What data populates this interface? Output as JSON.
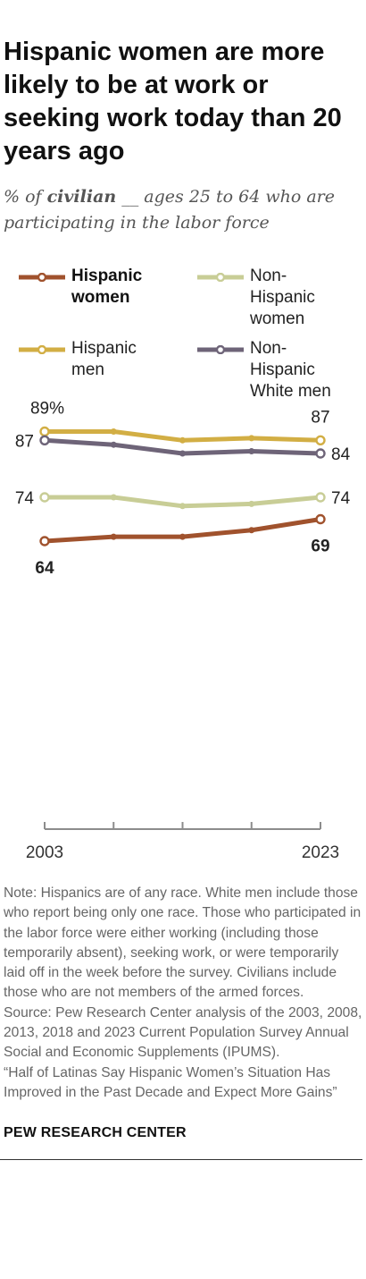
{
  "title": "Hispanic women are more likely to be at work or seeking work today than 20 years ago",
  "subtitle": {
    "pre": "% of ",
    "emph": "civilian",
    "post": " __ ages 25 to 64 who are participating in the labor force"
  },
  "legend": [
    {
      "label": "Hispanic women",
      "color": "#a0522d",
      "bold": true
    },
    {
      "label": "Non-Hispanic women",
      "color": "#c8cd96",
      "bold": false
    },
    {
      "label": "Hispanic men",
      "color": "#d2ae44",
      "bold": false
    },
    {
      "label": "Non-Hispanic White men",
      "color": "#6e6478",
      "bold": false
    }
  ],
  "chart_data": {
    "type": "line",
    "x": [
      2003,
      2008,
      2013,
      2018,
      2023
    ],
    "x_tick_labels": [
      "2003",
      "",
      "",
      "",
      "2023"
    ],
    "ylim": [
      0,
      100
    ],
    "grid": false,
    "legend_position": "top",
    "series": [
      {
        "name": "Hispanic men",
        "color": "#d2ae44",
        "values": [
          89,
          89,
          87,
          87.5,
          87
        ],
        "labels": [
          {
            "index": 0,
            "text": "89%",
            "pos": "above"
          },
          {
            "index": 4,
            "text": "87",
            "pos": "above"
          }
        ]
      },
      {
        "name": "Non-Hispanic White men",
        "color": "#6e6478",
        "values": [
          87,
          86,
          84,
          84.5,
          84
        ],
        "labels": [
          {
            "index": 0,
            "text": "87",
            "pos": "left"
          },
          {
            "index": 4,
            "text": "84",
            "pos": "right"
          }
        ]
      },
      {
        "name": "Non-Hispanic women",
        "color": "#c8cd96",
        "values": [
          74,
          74,
          72,
          72.5,
          74
        ],
        "labels": [
          {
            "index": 0,
            "text": "74",
            "pos": "left"
          },
          {
            "index": 4,
            "text": "74",
            "pos": "right"
          }
        ]
      },
      {
        "name": "Hispanic women",
        "color": "#a0522d",
        "bold": true,
        "values": [
          64,
          65,
          65,
          66.5,
          69
        ],
        "labels": [
          {
            "index": 0,
            "text": "64",
            "pos": "below"
          },
          {
            "index": 4,
            "text": "69",
            "pos": "below"
          }
        ]
      }
    ]
  },
  "notes": {
    "note": "Note: Hispanics are of any race. White men include those who report being only one race. Those who participated in the labor force were either working (including those temporarily absent), seeking work, or were temporarily laid off in the week before the survey. Civilians include those who are not members of the armed forces.",
    "source": "Source: Pew Research Center analysis of the 2003, 2008, 2013, 2018 and 2023 Current Population Survey Annual Social and Economic Supplements (IPUMS).",
    "report": "“Half of Latinas Say Hispanic Women’s Situation Has Improved in the Past Decade and Expect More Gains”"
  },
  "footer": "PEW RESEARCH CENTER"
}
